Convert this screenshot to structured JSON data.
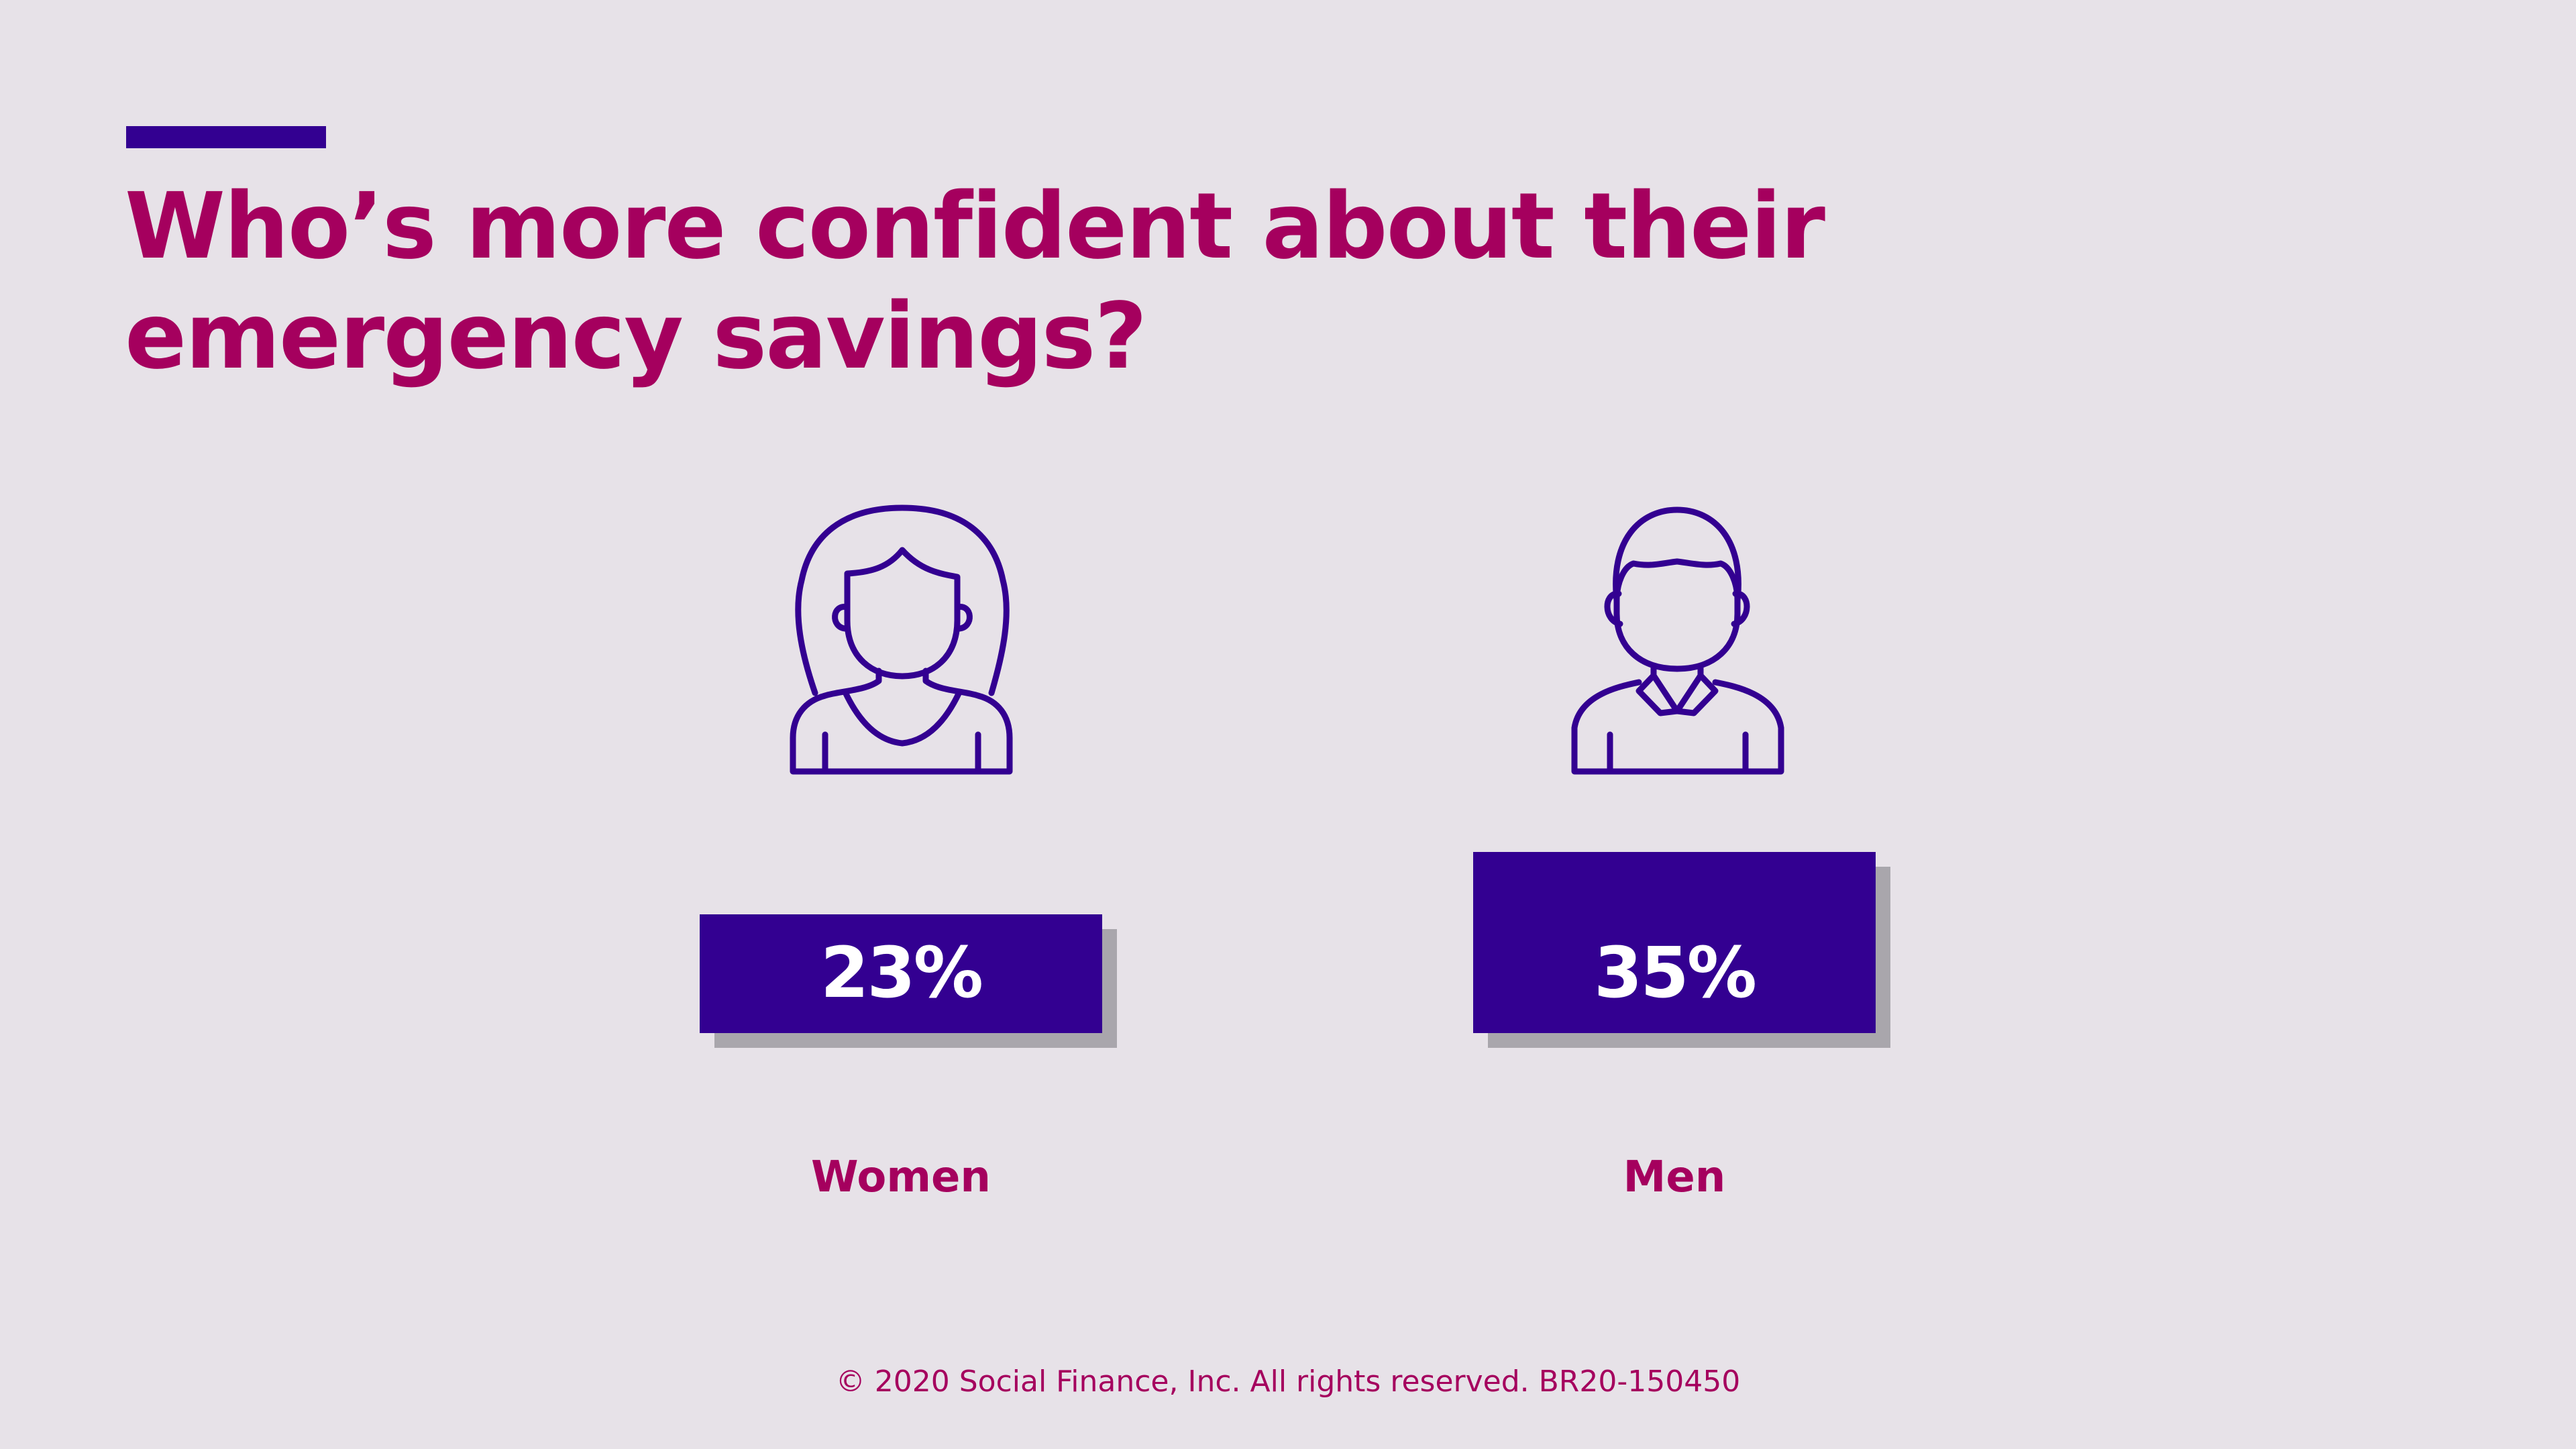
{
  "title_lines": [
    "Who’s more confident about their",
    "emergency savings?"
  ],
  "colors": {
    "background": "#E7E2E8",
    "accent": "#A5005E",
    "bar": "#330091",
    "shadow": "#A9A6AC",
    "value_text": "#FFFFFF"
  },
  "chart_data": {
    "type": "bar",
    "title": "Who’s more confident about their emergency savings?",
    "categories": [
      "Women",
      "Men"
    ],
    "values": [
      23,
      35
    ],
    "value_labels": [
      "23%",
      "35%"
    ],
    "unit": "%",
    "icons": [
      "woman-icon",
      "man-icon"
    ],
    "grid": false
  },
  "footer": "© 2020 Social Finance, Inc. All rights reserved. BR20-150450"
}
